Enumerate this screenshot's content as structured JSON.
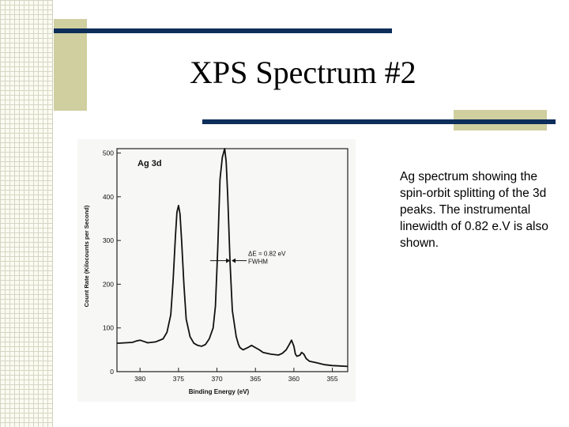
{
  "slide": {
    "title": "XPS Spectrum #2",
    "caption": "Ag spectrum showing the spin-orbit splitting of the 3d peaks.  The instrumental linewidth of 0.82 e.V is also shown.",
    "colors": {
      "navy_bar": "#0d2e5a",
      "khaki_block": "#cfcf9f",
      "grid_background": "#fbfbf2"
    }
  },
  "chart_data": {
    "type": "line",
    "panel_label": "Ag 3d",
    "xlabel": "Binding Energy (eV)",
    "ylabel": "Count Rate (Kilocounts per Second)",
    "xlim": [
      383,
      353
    ],
    "ylim": [
      0,
      510
    ],
    "x_reversed": true,
    "x_ticks": [
      380,
      375,
      370,
      365,
      360,
      355
    ],
    "y_ticks": [
      0,
      100,
      200,
      300,
      400,
      500
    ],
    "annotation": {
      "lines": [
        "ΔE = 0.82 eV",
        "FWHM"
      ],
      "at_x": 368.2,
      "at_y": 272
    },
    "series": [
      {
        "x": [
          383,
          381,
          380.5,
          380,
          379.5,
          379,
          378,
          377,
          376.5,
          376,
          375.7,
          375.4,
          375.2,
          375,
          374.8,
          374.6,
          374.3,
          374,
          373.5,
          373,
          372.5,
          372,
          371.5,
          371,
          370.5,
          370.2,
          369.9,
          369.6,
          369.3,
          369,
          368.8,
          368.6,
          368.3,
          368,
          367.5,
          367.2,
          367,
          366.6,
          366,
          365.5,
          365,
          364.5,
          364,
          363,
          362,
          361.5,
          361,
          360.6,
          360.3,
          360,
          359.8,
          359.6,
          359.2,
          359,
          358.7,
          358.4,
          358,
          357,
          356,
          355,
          354,
          353
        ],
        "y": [
          65,
          67,
          70,
          72,
          69,
          66,
          68,
          75,
          90,
          130,
          210,
          310,
          365,
          380,
          360,
          300,
          200,
          120,
          80,
          65,
          60,
          58,
          62,
          75,
          100,
          150,
          280,
          440,
          490,
          510,
          480,
          400,
          250,
          140,
          80,
          62,
          55,
          50,
          55,
          60,
          55,
          50,
          44,
          40,
          38,
          42,
          50,
          62,
          72,
          58,
          40,
          35,
          38,
          44,
          40,
          30,
          24,
          20,
          16,
          14,
          13,
          12
        ]
      }
    ]
  }
}
